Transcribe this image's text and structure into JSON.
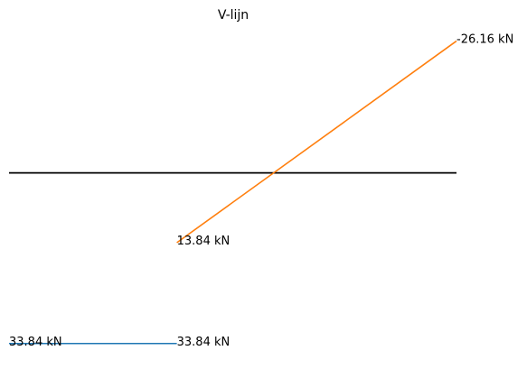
{
  "chart_data": {
    "type": "line",
    "title": "V-lijn",
    "xlim": [
      0,
      8
    ],
    "ylim": [
      38,
      -30
    ],
    "series": [
      {
        "color": "#000000",
        "x": [
          0,
          8
        ],
        "values": [
          0,
          0
        ]
      },
      {
        "color": "#1f77b4",
        "x": [
          0,
          3
        ],
        "values": [
          33.84,
          33.84
        ],
        "value_labels": [
          "33.84 kN",
          "33.84 kN"
        ]
      },
      {
        "color": "#ff7f0e",
        "x": [
          3,
          8
        ],
        "values": [
          13.84,
          -26.16
        ],
        "value_labels": [
          "13.84 kN",
          "-26.16 kN"
        ]
      }
    ]
  }
}
